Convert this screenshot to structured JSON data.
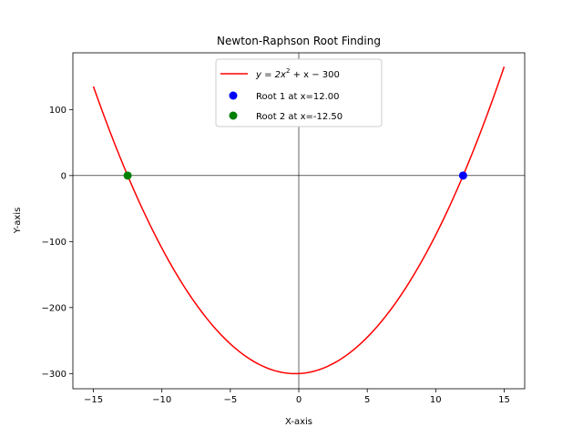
{
  "chart_data": {
    "type": "line",
    "title": "Newton-Raphson Root Finding",
    "xlabel": "X-axis",
    "ylabel": "Y-axis",
    "xlim": [
      -16.5,
      16.5
    ],
    "ylim": [
      -323,
      186
    ],
    "x_ticks": [
      -15,
      -10,
      -5,
      0,
      5,
      10,
      15
    ],
    "y_ticks": [
      100,
      0,
      -100,
      -200,
      -300
    ],
    "x_tick_labels": [
      "−15",
      "−10",
      "−5",
      "0",
      "5",
      "10",
      "15"
    ],
    "y_tick_labels": [
      "100",
      "0",
      "−100",
      "−200",
      "−300"
    ],
    "grid": false,
    "reference_lines": {
      "x": 0,
      "y": 0,
      "color": "#000000"
    },
    "curve": {
      "name": "y = 2x² + x − 300",
      "legend_parts": {
        "lhs": "y = 2x",
        "sup": "2",
        "rhs": " + x − 300"
      },
      "coefficients": {
        "a": 2,
        "b": 1,
        "c": -300
      },
      "x_range": [
        -15,
        15
      ],
      "color": "#ff0000"
    },
    "points": [
      {
        "name": "Root 1 at x=12.00",
        "x": 12.0,
        "y": 0,
        "color": "#0000ff"
      },
      {
        "name": "Root 2 at x=-12.50",
        "x": -12.5,
        "y": 0,
        "color": "#008000"
      }
    ],
    "legend_position": "top-center"
  }
}
